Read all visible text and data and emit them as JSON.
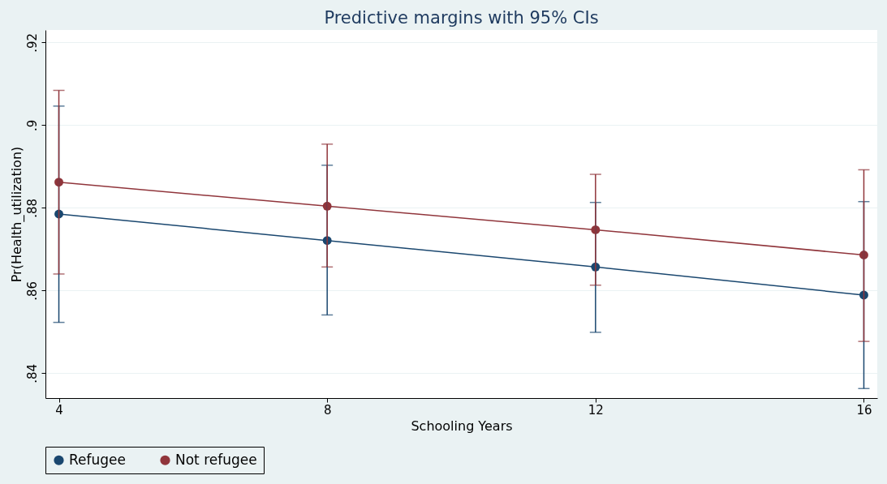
{
  "chart_data": {
    "type": "line",
    "title": "Predictive margins with 95% CIs",
    "xlabel": "Schooling Years",
    "ylabel": "Pr(Health_utilization)",
    "x": [
      4,
      8,
      12,
      16
    ],
    "series": [
      {
        "name": "Refugee",
        "color": "#1a476f",
        "values": [
          0.8785,
          0.8721,
          0.8657,
          0.8589
        ],
        "errors": [
          [
            0.8523,
            0.9046
          ],
          [
            0.8541,
            0.8903
          ],
          [
            0.8499,
            0.8813
          ],
          [
            0.8363,
            0.8815
          ]
        ]
      },
      {
        "name": "Not refugee",
        "color": "#90353b",
        "values": [
          0.8862,
          0.8804,
          0.8747,
          0.8686
        ],
        "errors": [
          [
            0.864,
            0.9084
          ],
          [
            0.8657,
            0.8954
          ],
          [
            0.8613,
            0.8881
          ],
          [
            0.8477,
            0.8892
          ]
        ]
      }
    ],
    "xlim": [
      3.8,
      16.2
    ],
    "xticks": [
      4,
      8,
      12,
      16
    ],
    "ylim": [
      0.834,
      0.923
    ],
    "yticks": [
      {
        "value": 0.84,
        "label": ".84"
      },
      {
        "value": 0.86,
        "label": ".86"
      },
      {
        "value": 0.88,
        "label": ".88"
      },
      {
        "value": 0.9,
        "label": ".9"
      },
      {
        "value": 0.92,
        "label": ".92"
      }
    ],
    "grid": "y",
    "legend": "bottom",
    "marker": "circle",
    "line_style": "solid"
  }
}
